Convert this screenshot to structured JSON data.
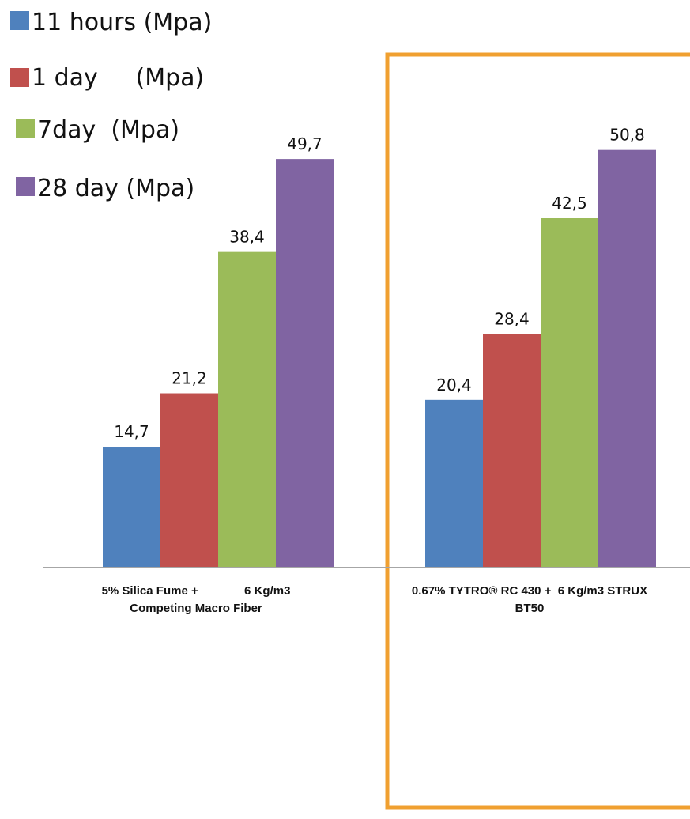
{
  "chart_data": {
    "type": "bar",
    "title": "",
    "xlabel": "",
    "ylabel": "",
    "ylim": [
      0,
      65
    ],
    "grid": false,
    "legend_position": "top-left",
    "categories": [
      {
        "lines": [
          "5% Silica Fume +              6 Kg/m3",
          "Competing Macro Fiber"
        ],
        "highlighted": false
      },
      {
        "lines": [
          "0.67% TYTRO® RC 430 +  6 Kg/m3 STRUX",
          "BT50"
        ],
        "highlighted": true
      }
    ],
    "series": [
      {
        "name": "11 hours (Mpa)",
        "color": "#4f81bd",
        "values": [
          14.7,
          20.4
        ],
        "labels": [
          "14,7",
          "20,4"
        ]
      },
      {
        "name": "1 day     (Mpa)",
        "color": "#c0504d",
        "values": [
          21.2,
          28.4
        ],
        "labels": [
          "21,2",
          "28,4"
        ]
      },
      {
        "name": "7day  (Mpa)",
        "color": "#9bbb59",
        "values": [
          38.4,
          42.5
        ],
        "labels": [
          "38,4",
          "42,5"
        ]
      },
      {
        "name": "28 day (Mpa)",
        "color": "#8064a2",
        "values": [
          49.7,
          50.8
        ],
        "labels": [
          "49,7",
          "50,8"
        ]
      }
    ],
    "highlight_color": "#f0a030",
    "axis_color": "#a6a6a6"
  }
}
